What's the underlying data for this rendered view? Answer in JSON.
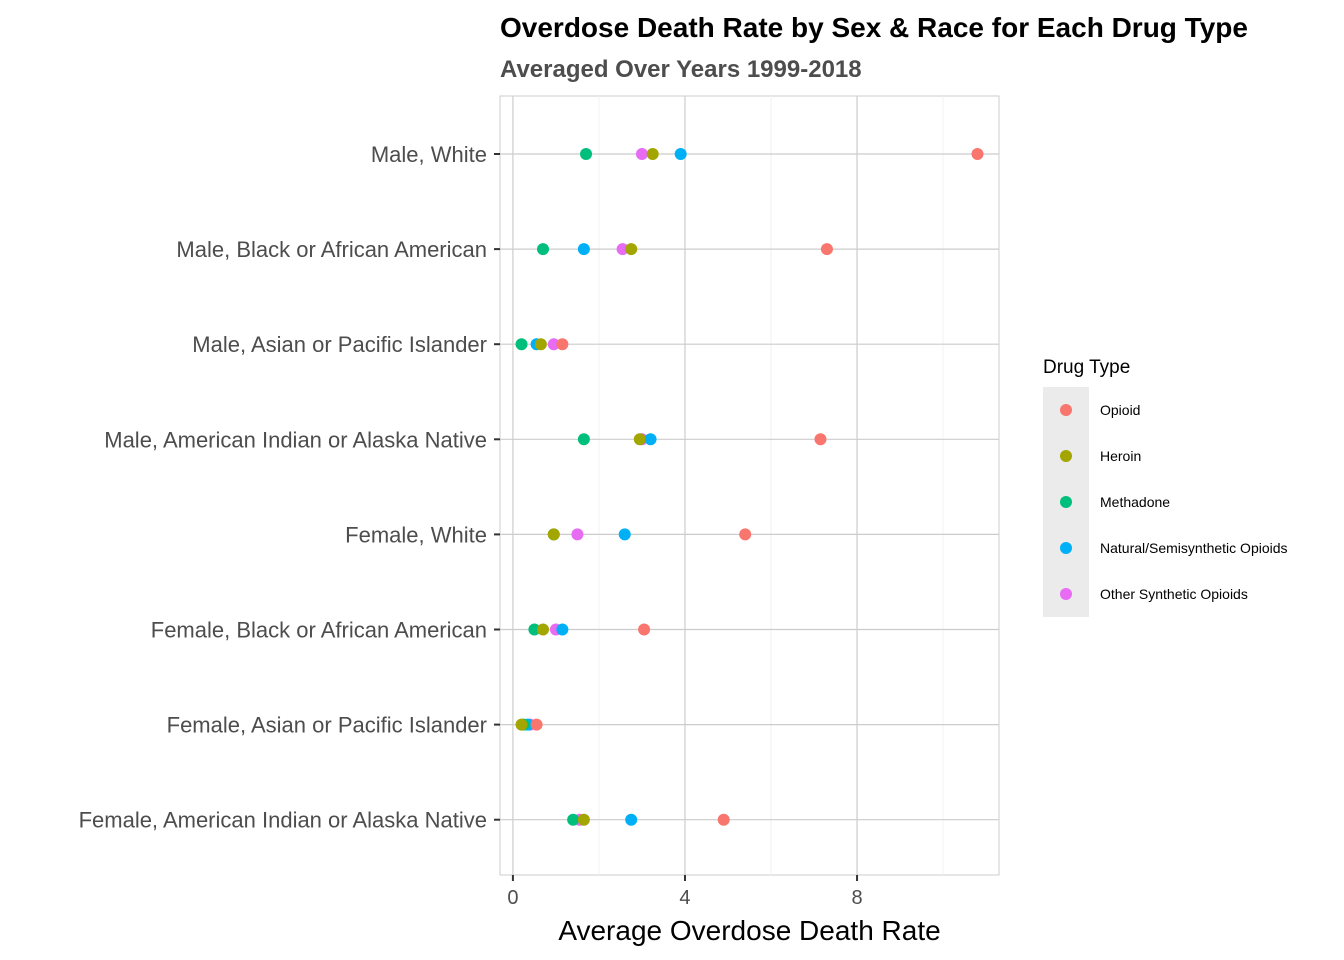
{
  "chart_data": {
    "type": "scatter",
    "title": "Overdose Death Rate by Sex & Race for Each Drug Type",
    "subtitle": "Averaged Over Years 1999-2018",
    "xlabel": "Average Overdose Death Rate",
    "ylabel": "",
    "xlim": [
      -0.3,
      11.3
    ],
    "xticks": [
      0,
      4,
      8
    ],
    "xtick_labels": [
      "0",
      "4",
      "8"
    ],
    "grid": true,
    "legend": {
      "title": "Drug Type",
      "position": "right"
    },
    "categories": [
      "Male, White",
      "Male, Black or African American",
      "Male, Asian or Pacific Islander",
      "Male, American Indian or Alaska Native",
      "Female, White",
      "Female, Black or African American",
      "Female, Asian or Pacific Islander",
      "Female, American Indian or Alaska Native"
    ],
    "series": [
      {
        "name": "Opioid",
        "color": "#F8766D",
        "values": [
          10.8,
          7.3,
          1.15,
          7.15,
          5.4,
          3.05,
          0.55,
          4.9
        ]
      },
      {
        "name": "Heroin",
        "color": "#A3A500",
        "values": [
          3.25,
          2.75,
          0.65,
          2.95,
          0.95,
          0.7,
          0.2,
          1.65
        ]
      },
      {
        "name": "Methadone",
        "color": "#00BF7D",
        "values": [
          1.7,
          0.7,
          0.2,
          1.65,
          0.95,
          0.5,
          0.25,
          1.4
        ]
      },
      {
        "name": "Natural/Semisynthetic Opioids",
        "color": "#00B0F6",
        "values": [
          3.9,
          1.65,
          0.55,
          3.2,
          2.6,
          1.15,
          0.35,
          2.75
        ]
      },
      {
        "name": "Other Synthetic Opioids",
        "color": "#E76BF3",
        "values": [
          3.0,
          2.55,
          0.95,
          3.0,
          1.5,
          1.0,
          0.4,
          1.55
        ]
      }
    ]
  }
}
